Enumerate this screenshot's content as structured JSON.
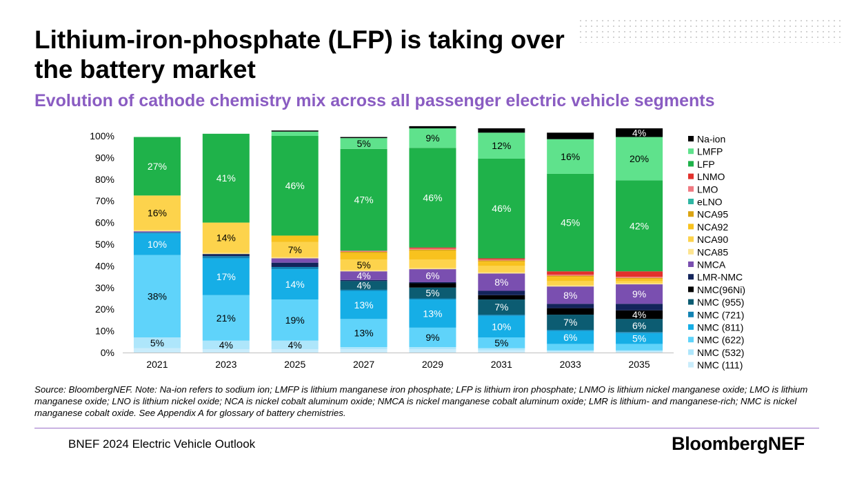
{
  "header": {
    "title": "Lithium-iron-phosphate (LFP) is taking over the battery market",
    "subtitle": "Evolution of cathode chemistry mix across all passenger electric vehicle segments"
  },
  "footer": {
    "source": "Source: BloombergNEF. Note: Na-ion refers to sodium ion; LMFP is lithium manganese iron phosphate; LFP is lithium iron phosphate; LNMO is lithium nickel manganese oxide; LMO is lithium manganese oxide; LNO is lithium nickel oxide; NCA is nickel cobalt aluminum oxide; NMCA is nickel manganese cobalt aluminum oxide; LMR is lithium- and manganese-rich; NMC is nickel manganese cobalt oxide. See Appendix A for glossary of battery chemistries.",
    "report": "BNEF 2024 Electric Vehicle Outlook",
    "logo": "BloombergNEF"
  },
  "colors": {
    "title": "#000000",
    "subtitle": "#8a5cc2",
    "divider": "#9a6fc8"
  },
  "chart_data": {
    "type": "bar",
    "stacked": true,
    "title": "",
    "xlabel": "",
    "ylabel": "",
    "ylim": [
      0,
      100
    ],
    "y_ticks": [
      "0%",
      "10%",
      "20%",
      "30%",
      "40%",
      "50%",
      "60%",
      "70%",
      "80%",
      "90%",
      "100%"
    ],
    "grid": false,
    "legend_position": "right",
    "categories": [
      "2021",
      "2023",
      "2025",
      "2027",
      "2029",
      "2031",
      "2033",
      "2035"
    ],
    "series": [
      {
        "name": "NMC (111)",
        "color": "#c9ecfb",
        "values": [
          2,
          1.5,
          1.5,
          1.5,
          1.5,
          1,
          0.5,
          0.5
        ]
      },
      {
        "name": "NMC (532)",
        "color": "#aee6fb",
        "values": [
          5,
          4,
          4,
          1,
          1,
          1,
          0.5,
          0.5
        ]
      },
      {
        "name": "NMC (622)",
        "color": "#5fd3fa",
        "values": [
          38,
          21,
          19,
          13,
          9,
          5,
          3,
          3
        ]
      },
      {
        "name": "NMC (811)",
        "color": "#16aee6",
        "values": [
          10,
          17,
          14,
          13,
          13,
          10,
          6,
          5
        ]
      },
      {
        "name": "NMC (721)",
        "color": "#1283b3",
        "values": [
          0.5,
          1,
          1,
          0.5,
          0.5,
          0.5,
          0.5,
          0.5
        ]
      },
      {
        "name": "NMC (955)",
        "color": "#0c5c72",
        "values": [
          0,
          0,
          0,
          4,
          5,
          7,
          7,
          6
        ]
      },
      {
        "name": "NMC(96Ni)",
        "color": "#000000",
        "values": [
          0,
          0,
          0,
          0,
          2,
          2,
          3,
          4
        ]
      },
      {
        "name": "LMR-NMC",
        "color": "#13245b",
        "values": [
          0,
          1,
          2,
          0.5,
          0.5,
          2,
          2,
          3
        ]
      },
      {
        "name": "NMCA",
        "color": "#7a4fb0",
        "values": [
          0.5,
          0,
          2,
          4,
          6,
          8,
          8,
          9
        ]
      },
      {
        "name": "NCA85",
        "color": "#fde490",
        "values": [
          0.5,
          0.5,
          0.5,
          0.5,
          0.5,
          0.5,
          0.5,
          0.5
        ]
      },
      {
        "name": "NCA90",
        "color": "#fdd34c",
        "values": [
          16,
          14,
          7,
          5,
          4,
          3,
          2,
          1
        ]
      },
      {
        "name": "NCA92",
        "color": "#f8c21e",
        "values": [
          0,
          0,
          3,
          3,
          4,
          2,
          2,
          1
        ]
      },
      {
        "name": "NCA95",
        "color": "#dba412",
        "values": [
          0,
          0,
          0,
          0.5,
          0.5,
          0.5,
          0.5,
          0.5
        ]
      },
      {
        "name": "eLNO",
        "color": "#2fb6a3",
        "values": [
          0,
          0,
          0,
          0,
          0,
          0,
          0,
          0
        ]
      },
      {
        "name": "LMO",
        "color": "#f07a82",
        "values": [
          0,
          0,
          0,
          0.5,
          0.5,
          0.5,
          0.5,
          0.5
        ]
      },
      {
        "name": "LNMO",
        "color": "#e2312c",
        "values": [
          0,
          0,
          0,
          0,
          0.5,
          0.5,
          1.5,
          2.5
        ]
      },
      {
        "name": "LFP",
        "color": "#1fb24a",
        "values": [
          27,
          41,
          46,
          47,
          46,
          46,
          45,
          42
        ]
      },
      {
        "name": "LMFP",
        "color": "#5fe28c",
        "values": [
          0,
          0,
          2,
          5,
          9,
          12,
          16,
          20
        ]
      },
      {
        "name": "Na-ion",
        "color": "#000000",
        "values": [
          0,
          0,
          0.5,
          0.5,
          1,
          2,
          3,
          4
        ]
      }
    ],
    "data_labels": [
      {
        "category": "2021",
        "series": "NMC (532)",
        "text": "5%"
      },
      {
        "category": "2021",
        "series": "NMC (622)",
        "text": "38%"
      },
      {
        "category": "2021",
        "series": "NMC (811)",
        "text": "10%"
      },
      {
        "category": "2021",
        "series": "NCA90",
        "text": "16%"
      },
      {
        "category": "2021",
        "series": "LFP",
        "text": "27%"
      },
      {
        "category": "2023",
        "series": "NMC (532)",
        "text": "4%"
      },
      {
        "category": "2023",
        "series": "NMC (622)",
        "text": "21%"
      },
      {
        "category": "2023",
        "series": "NMC (811)",
        "text": "17%"
      },
      {
        "category": "2023",
        "series": "NCA90",
        "text": "14%"
      },
      {
        "category": "2023",
        "series": "LFP",
        "text": "41%"
      },
      {
        "category": "2025",
        "series": "NMC (532)",
        "text": "4%"
      },
      {
        "category": "2025",
        "series": "NMC (622)",
        "text": "19%"
      },
      {
        "category": "2025",
        "series": "NMC (811)",
        "text": "14%"
      },
      {
        "category": "2025",
        "series": "NCA90",
        "text": "7%"
      },
      {
        "category": "2025",
        "series": "LFP",
        "text": "46%"
      },
      {
        "category": "2027",
        "series": "NMC (622)",
        "text": "13%"
      },
      {
        "category": "2027",
        "series": "NMC (811)",
        "text": "13%"
      },
      {
        "category": "2027",
        "series": "NMC (955)",
        "text": "4%"
      },
      {
        "category": "2027",
        "series": "NMCA",
        "text": "4%"
      },
      {
        "category": "2027",
        "series": "NCA90",
        "text": "5%"
      },
      {
        "category": "2027",
        "series": "LFP",
        "text": "47%"
      },
      {
        "category": "2027",
        "series": "LMFP",
        "text": "5%"
      },
      {
        "category": "2029",
        "series": "NMC (622)",
        "text": "9%"
      },
      {
        "category": "2029",
        "series": "NMC (811)",
        "text": "13%"
      },
      {
        "category": "2029",
        "series": "NMC (955)",
        "text": "5%"
      },
      {
        "category": "2029",
        "series": "NMCA",
        "text": "6%"
      },
      {
        "category": "2029",
        "series": "LFP",
        "text": "46%"
      },
      {
        "category": "2029",
        "series": "LMFP",
        "text": "9%"
      },
      {
        "category": "2031",
        "series": "NMC (622)",
        "text": "5%"
      },
      {
        "category": "2031",
        "series": "NMC (811)",
        "text": "10%"
      },
      {
        "category": "2031",
        "series": "NMC (955)",
        "text": "7%"
      },
      {
        "category": "2031",
        "series": "NMCA",
        "text": "8%"
      },
      {
        "category": "2031",
        "series": "LFP",
        "text": "46%"
      },
      {
        "category": "2031",
        "series": "LMFP",
        "text": "12%"
      },
      {
        "category": "2033",
        "series": "NMC (811)",
        "text": "6%"
      },
      {
        "category": "2033",
        "series": "NMC (955)",
        "text": "7%"
      },
      {
        "category": "2033",
        "series": "NMCA",
        "text": "8%"
      },
      {
        "category": "2033",
        "series": "LFP",
        "text": "45%"
      },
      {
        "category": "2033",
        "series": "LMFP",
        "text": "16%"
      },
      {
        "category": "2035",
        "series": "NMC (811)",
        "text": "5%"
      },
      {
        "category": "2035",
        "series": "NMC (955)",
        "text": "6%"
      },
      {
        "category": "2035",
        "series": "NMC(96Ni)",
        "text": "4%"
      },
      {
        "category": "2035",
        "series": "NMCA",
        "text": "9%"
      },
      {
        "category": "2035",
        "series": "LFP",
        "text": "42%"
      },
      {
        "category": "2035",
        "series": "LMFP",
        "text": "20%"
      },
      {
        "category": "2035",
        "series": "Na-ion",
        "text": "4%"
      }
    ]
  }
}
